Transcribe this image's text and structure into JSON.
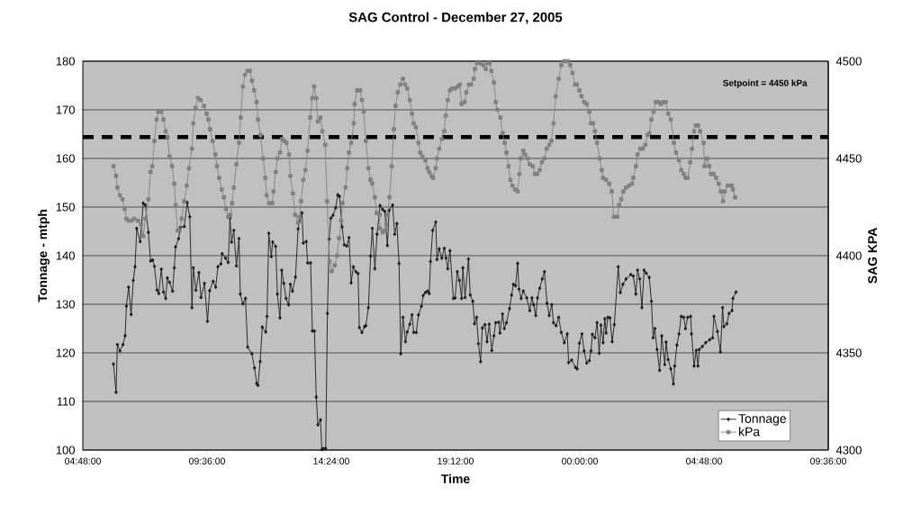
{
  "chart_data": {
    "type": "line",
    "title": "SAG Control - December 27, 2005",
    "xlabel": "Time",
    "ylabel": "Tonnage - mtph",
    "y2label": "SAG KPA",
    "xlim": [
      "2005-12-27T04:48",
      "2005-12-28T09:36"
    ],
    "xticks": [
      {
        "value": "2005-12-27T04:48",
        "label": "04:48:00"
      },
      {
        "value": "2005-12-27T09:36",
        "label": "09:36:00"
      },
      {
        "value": "2005-12-27T14:24",
        "label": "14:24:00"
      },
      {
        "value": "2005-12-27T19:12",
        "label": "19:12:00"
      },
      {
        "value": "2005-12-28T00:00",
        "label": "00:00:00"
      },
      {
        "value": "2005-12-28T04:48",
        "label": "04:48:00"
      },
      {
        "value": "2005-12-28T09:36",
        "label": "09:36:00"
      }
    ],
    "ylim": [
      100,
      180
    ],
    "yticks": [
      100,
      110,
      120,
      130,
      140,
      150,
      160,
      170,
      180
    ],
    "y2lim": [
      4300,
      4500
    ],
    "y2ticks": [
      4300,
      4350,
      4400,
      4450,
      4500
    ],
    "grid": "y",
    "legend": "bottom right",
    "line_style": "solid",
    "ref_lines": [
      {
        "axis": "y",
        "value": 164.4,
        "color": "#000000",
        "line_style": "dashed"
      }
    ],
    "annotations": [
      "Setpoint = 4450 kPa"
    ],
    "series": [
      {
        "name": "Tonnage",
        "color": "#1a1a1a",
        "marker": "diamond",
        "x": [
          "2005-12-27T05:59",
          "2005-12-27T06:05",
          "2005-12-27T06:08",
          "2005-12-27T06:14",
          "2005-12-27T06:21",
          "2005-12-27T06:26",
          "2005-12-27T06:29",
          "2005-12-27T06:34",
          "2005-12-27T06:40",
          "2005-12-27T06:45",
          "2005-12-27T06:49",
          "2005-12-27T06:53",
          "2005-12-27T07:01",
          "2005-12-27T07:08",
          "2005-12-27T07:13",
          "2005-12-27T07:20",
          "2005-12-27T07:25",
          "2005-12-27T07:30",
          "2005-12-27T07:34",
          "2005-12-27T07:40",
          "2005-12-27T07:44",
          "2005-12-27T07:50",
          "2005-12-27T07:55",
          "2005-12-27T08:00",
          "2005-12-27T08:04",
          "2005-12-27T08:09",
          "2005-12-27T08:16",
          "2005-12-27T08:20",
          "2005-12-27T08:23",
          "2005-12-27T08:30",
          "2005-12-27T08:34",
          "2005-12-27T08:43",
          "2005-12-27T08:50",
          "2005-12-27T08:56",
          "2005-12-27T09:01",
          "2005-12-27T09:04",
          "2005-12-27T09:10",
          "2005-12-27T09:17",
          "2005-12-27T09:22",
          "2005-12-27T09:30",
          "2005-12-27T09:37",
          "2005-12-27T09:42",
          "2005-12-27T09:50",
          "2005-12-27T09:56",
          "2005-12-27T10:01",
          "2005-12-27T10:08",
          "2005-12-27T10:11",
          "2005-12-27T10:19",
          "2005-12-27T10:25",
          "2005-12-27T10:29",
          "2005-12-27T10:33",
          "2005-12-27T10:38",
          "2005-12-27T10:44",
          "2005-12-27T10:50",
          "2005-12-27T10:53",
          "2005-12-27T10:59",
          "2005-12-27T11:05",
          "2005-12-27T11:10",
          "2005-12-27T11:20",
          "2005-12-27T11:26",
          "2005-12-27T11:31",
          "2005-12-27T11:34",
          "2005-12-27T11:39",
          "2005-12-27T11:44",
          "2005-12-27T11:52",
          "2005-12-27T11:55",
          "2005-12-27T11:59",
          "2005-12-27T12:05",
          "2005-12-27T12:08",
          "2005-12-27T12:15",
          "2005-12-27T12:19",
          "2005-12-27T12:25",
          "2005-12-27T12:29",
          "2005-12-27T12:34",
          "2005-12-27T12:39",
          "2005-12-27T12:45",
          "2005-12-27T12:49",
          "2005-12-27T12:54",
          "2005-12-27T13:01",
          "2005-12-27T13:07",
          "2005-12-27T13:10",
          "2005-12-27T13:16",
          "2005-12-27T13:19",
          "2005-12-27T13:26",
          "2005-12-27T13:29",
          "2005-12-27T13:36",
          "2005-12-27T13:40",
          "2005-12-27T13:45",
          "2005-12-27T13:49",
          "2005-12-27T13:53",
          "2005-12-27T13:59",
          "2005-12-27T14:02",
          "2005-12-27T14:06",
          "2005-12-27T14:11",
          "2005-12-27T14:15",
          "2005-12-27T14:19",
          "2005-12-27T14:23",
          "2005-12-27T14:28",
          "2005-12-27T14:34",
          "2005-12-27T14:39",
          "2005-12-27T14:43",
          "2005-12-27T14:49",
          "2005-12-27T14:54",
          "2005-12-27T15:00",
          "2005-12-27T15:05",
          "2005-12-27T15:10",
          "2005-12-27T15:15",
          "2005-12-27T15:21",
          "2005-12-27T15:26",
          "2005-12-27T15:29",
          "2005-12-27T15:35",
          "2005-12-27T15:41",
          "2005-12-27T15:44",
          "2005-12-27T15:50",
          "2005-12-27T15:55",
          "2005-12-27T15:59",
          "2005-12-27T16:05",
          "2005-12-27T16:10",
          "2005-12-27T16:17",
          "2005-12-27T16:23",
          "2005-12-27T16:28",
          "2005-12-27T16:34",
          "2005-12-27T16:38",
          "2005-12-27T16:46",
          "2005-12-27T16:51",
          "2005-12-27T16:56",
          "2005-12-27T17:01",
          "2005-12-27T17:05",
          "2005-12-27T17:10",
          "2005-12-27T17:16",
          "2005-12-27T17:20",
          "2005-12-27T17:26",
          "2005-12-27T17:31",
          "2005-12-27T17:35",
          "2005-12-27T17:41",
          "2005-12-27T17:46",
          "2005-12-27T17:53",
          "2005-12-27T17:57",
          "2005-12-27T18:02",
          "2005-12-27T18:07",
          "2005-12-27T18:11",
          "2005-12-27T18:14",
          "2005-12-27T18:19",
          "2005-12-27T18:26",
          "2005-12-27T18:29",
          "2005-12-27T18:34",
          "2005-12-27T18:40",
          "2005-12-27T18:46",
          "2005-12-27T18:50",
          "2005-12-27T18:54",
          "2005-12-27T18:59",
          "2005-12-27T19:07",
          "2005-12-27T19:11",
          "2005-12-27T19:16",
          "2005-12-27T19:21",
          "2005-12-27T19:26",
          "2005-12-27T19:29",
          "2005-12-27T19:34",
          "2005-12-27T19:42",
          "2005-12-27T19:46",
          "2005-12-27T19:52",
          "2005-12-27T19:56",
          "2005-12-27T20:01",
          "2005-12-27T20:05",
          "2005-12-27T20:10",
          "2005-12-27T20:14",
          "2005-12-27T20:20",
          "2005-12-27T20:25",
          "2005-12-27T20:30",
          "2005-12-27T20:36",
          "2005-12-27T20:41",
          "2005-12-27T20:45",
          "2005-12-27T20:52",
          "2005-12-27T20:55",
          "2005-12-27T21:01",
          "2005-12-27T21:05",
          "2005-12-27T21:10",
          "2005-12-27T21:17",
          "2005-12-27T21:22",
          "2005-12-27T21:26",
          "2005-12-27T21:31",
          "2005-12-27T21:36",
          "2005-12-27T21:39",
          "2005-12-27T21:44",
          "2005-12-27T21:49",
          "2005-12-27T21:57",
          "2005-12-27T22:04",
          "2005-12-27T22:09",
          "2005-12-27T22:13",
          "2005-12-27T22:18",
          "2005-12-27T22:22",
          "2005-12-27T22:27",
          "2005-12-27T22:33",
          "2005-12-27T22:38",
          "2005-12-27T22:44",
          "2005-12-27T22:49",
          "2005-12-27T22:55",
          "2005-12-27T22:59",
          "2005-12-27T23:05",
          "2005-12-27T23:11",
          "2005-12-27T23:17",
          "2005-12-27T23:24",
          "2005-12-27T23:31",
          "2005-12-27T23:34",
          "2005-12-27T23:41",
          "2005-12-27T23:50",
          "2005-12-27T23:54",
          "2005-12-27T23:59",
          "2005-12-28T00:05",
          "2005-12-28T00:10",
          "2005-12-28T00:16",
          "2005-12-28T00:22",
          "2005-12-28T00:26",
          "2005-12-28T00:29",
          "2005-12-28T00:35",
          "2005-12-28T00:40",
          "2005-12-28T00:45",
          "2005-12-28T00:49",
          "2005-12-28T00:54",
          "2005-12-28T00:58",
          "2005-12-28T01:01",
          "2005-12-28T01:05",
          "2005-12-28T01:10",
          "2005-12-28T01:15",
          "2005-12-28T01:20",
          "2005-12-28T01:29",
          "2005-12-28T01:34",
          "2005-12-28T01:40",
          "2005-12-28T01:47",
          "2005-12-28T01:58",
          "2005-12-28T02:04",
          "2005-12-28T02:10",
          "2005-12-28T02:14",
          "2005-12-28T02:19",
          "2005-12-28T02:24",
          "2005-12-28T02:29",
          "2005-12-28T02:34",
          "2005-12-28T02:41",
          "2005-12-28T02:46",
          "2005-12-28T02:50",
          "2005-12-28T02:54",
          "2005-12-28T02:59",
          "2005-12-28T03:05",
          "2005-12-28T03:10",
          "2005-12-28T03:17",
          "2005-12-28T03:20",
          "2005-12-28T03:25",
          "2005-12-28T03:31",
          "2005-12-28T03:37",
          "2005-12-28T03:40",
          "2005-12-28T03:45",
          "2005-12-28T03:50",
          "2005-12-28T03:55",
          "2005-12-28T04:01",
          "2005-12-28T04:05",
          "2005-12-28T04:10",
          "2005-12-28T04:17",
          "2005-12-28T04:19",
          "2005-12-28T04:25",
          "2005-12-28T04:30",
          "2005-12-28T04:34",
          "2005-12-28T04:37",
          "2005-12-28T04:44",
          "2005-12-28T04:52",
          "2005-12-28T05:01",
          "2005-12-28T05:08",
          "2005-12-28T05:11",
          "2005-12-28T05:19",
          "2005-12-28T05:26",
          "2005-12-28T05:31",
          "2005-12-28T05:34",
          "2005-12-28T05:41",
          "2005-12-28T05:46",
          "2005-12-28T05:53",
          "2005-12-28T05:55",
          "2005-12-28T06:02"
        ],
        "values": [
          117.7,
          111.9,
          121.7,
          120.4,
          121.7,
          123.5,
          129.6,
          133.5,
          127.9,
          134.9,
          137.7,
          145.6,
          142.9,
          150.8,
          150.4,
          144.8,
          138.9,
          139.1,
          137.8,
          132.9,
          132.2,
          137.2,
          132.5,
          131.2,
          135.4,
          134.5,
          132.7,
          137.5,
          141.8,
          143.5,
          145.8,
          146.0,
          150.9,
          148.0,
          129.3,
          137.5,
          132.9,
          136.5,
          131.4,
          134.3,
          126.5,
          132.8,
          134.7,
          133.5,
          137.7,
          138.3,
          140.4,
          139.5,
          138.6,
          147.7,
          142.8,
          145.2,
          137.9,
          143.5,
          132.1,
          130.1,
          131.2,
          121.2,
          119.8,
          116.9,
          113.7,
          113.3,
          118.2,
          125.3,
          124.3,
          127.5,
          144.6,
          139.8,
          142.8,
          141.9,
          132.1,
          127.2,
          137.0,
          134.3,
          131.2,
          129.9,
          134.1,
          132.7,
          135.6,
          145.5,
          147.0,
          148.8,
          142.6,
          142.9,
          138.5,
          138.5,
          124.5,
          124.5,
          110.9,
          105.2,
          106.2,
          100.1,
          100.3,
          100.3,
          128.1,
          143.4,
          147.7,
          148.3,
          149.8,
          152.5,
          152.2,
          145.9,
          142.2,
          142.0,
          143.7,
          134.4,
          137.7,
          136.7,
          136.3,
          125.2,
          124.2,
          125.4,
          125.6,
          129.3,
          139.9,
          145.6,
          137.3,
          144.4,
          150.3,
          149.5,
          149.1,
          142.1,
          149.3,
          150.4,
          144.4,
          146.6,
          138.4,
          119.8,
          127.3,
          122.3,
          124.3,
          125.9,
          127.8,
          124.2,
          124.2,
          127.8,
          129.6,
          131.8,
          132.4,
          132.7,
          132.2,
          138.8,
          145.2,
          146.9,
          139.2,
          141.4,
          139.5,
          141.5,
          139.5,
          137.3,
          141.0,
          131.2,
          131.3,
          136.7,
          134.9,
          131.2,
          137.5,
          131.4,
          139.3,
          131.9,
          130.6,
          126.0,
          127.3,
          121.9,
          118.2,
          125.1,
          125.8,
          122.3,
          125.9,
          120.5,
          123.5,
          126.2,
          126.3,
          124.1,
          128.0,
          125.0,
          126.2,
          129.1,
          131.9,
          134.1,
          133.8,
          138.4,
          133.1,
          131.2,
          132.7,
          131.3,
          128.7,
          131.3,
          129.9,
          127.7,
          131.3,
          133.3,
          135.2,
          136.7,
          130.2,
          127.7,
          129.9,
          126.2,
          125.6,
          127.3,
          124.2,
          122.1,
          123.9,
          118.0,
          118.5,
          117.0,
          116.7,
          122.0,
          123.9,
          120.4,
          117.9,
          118.4,
          120.4,
          123.8,
          123.1,
          126.2,
          119.9,
          125.7,
          122.1,
          127.0,
          124.1,
          127.3,
          127.2,
          122.3,
          125.8,
          137.7,
          132.4,
          134.1,
          135.2,
          136.1,
          135.8,
          132.1,
          137.0,
          135.2,
          129.3,
          137.0,
          136.4,
          135.5,
          130.6,
          123.1,
          125.0,
          120.7,
          116.4,
          123.5,
          117.6,
          122.2,
          118.6,
          116.7,
          113.6,
          117.3,
          121.6,
          123.9,
          127.5,
          127.3,
          125.0,
          127.3,
          127.5,
          123.9,
          117.3,
          120.5,
          117.3,
          120.7,
          121.3,
          122.1,
          122.7,
          123.1,
          127.5,
          124.4,
          120.2,
          129.3,
          125.4,
          126.0,
          128.1,
          128.7,
          131.2,
          132.5
        ]
      },
      {
        "name": "kPa",
        "color": "#808080",
        "marker": "square",
        "axis": "y2",
        "x": [
          "2005-12-27T05:59",
          "2005-12-27T06:05",
          "2005-12-27T06:08",
          "2005-12-27T06:14",
          "2005-12-27T06:20",
          "2005-12-27T06:25",
          "2005-12-27T06:29",
          "2005-12-27T06:34",
          "2005-12-27T06:41",
          "2005-12-27T06:47",
          "2005-12-27T06:56",
          "2005-12-27T07:03",
          "2005-12-27T07:08",
          "2005-12-27T07:13",
          "2005-12-27T07:20",
          "2005-12-27T07:25",
          "2005-12-27T07:29",
          "2005-12-27T07:34",
          "2005-12-27T07:39",
          "2005-12-27T07:43",
          "2005-12-27T07:50",
          "2005-12-27T07:55",
          "2005-12-27T08:00",
          "2005-12-27T08:04",
          "2005-12-27T08:09",
          "2005-12-27T08:15",
          "2005-12-27T08:20",
          "2005-12-27T08:23",
          "2005-12-27T08:28",
          "2005-12-27T08:32",
          "2005-12-27T08:37",
          "2005-12-27T08:43",
          "2005-12-27T08:49",
          "2005-12-27T08:54",
          "2005-12-27T09:01",
          "2005-12-27T09:04",
          "2005-12-27T09:09",
          "2005-12-27T09:15",
          "2005-12-27T09:21",
          "2005-12-27T09:29",
          "2005-12-27T09:35",
          "2005-12-27T09:39",
          "2005-12-27T09:43",
          "2005-12-27T09:49",
          "2005-12-27T09:55",
          "2005-12-27T09:59",
          "2005-12-27T10:04",
          "2005-12-27T10:10",
          "2005-12-27T10:15",
          "2005-12-27T10:20",
          "2005-12-27T10:25",
          "2005-12-27T10:30",
          "2005-12-27T10:34",
          "2005-12-27T10:38",
          "2005-12-27T10:44",
          "2005-12-27T10:50",
          "2005-12-27T10:54",
          "2005-12-27T10:59",
          "2005-12-27T11:04",
          "2005-12-27T11:10",
          "2005-12-27T11:15",
          "2005-12-27T11:20",
          "2005-12-27T11:25",
          "2005-12-27T11:31",
          "2005-12-27T11:34",
          "2005-12-27T11:40",
          "2005-12-27T11:46",
          "2005-12-27T11:51",
          "2005-12-27T11:54",
          "2005-12-27T12:00",
          "2005-12-27T12:07",
          "2005-12-27T12:10",
          "2005-12-27T12:15",
          "2005-12-27T12:19",
          "2005-12-27T12:25",
          "2005-12-27T12:30",
          "2005-12-27T12:35",
          "2005-12-27T12:40",
          "2005-12-27T12:46",
          "2005-12-27T12:49",
          "2005-12-27T12:55",
          "2005-12-27T13:00",
          "2005-12-27T13:07",
          "2005-12-27T13:10",
          "2005-12-27T13:14",
          "2005-12-27T13:19",
          "2005-12-27T13:24",
          "2005-12-27T13:29",
          "2005-12-27T13:35",
          "2005-12-27T13:40",
          "2005-12-27T13:44",
          "2005-12-27T13:49",
          "2005-12-27T13:53",
          "2005-12-27T13:59",
          "2005-12-27T14:03",
          "2005-12-27T14:10",
          "2005-12-27T14:14",
          "2005-12-27T14:20",
          "2005-12-27T14:25",
          "2005-12-27T14:32",
          "2005-12-27T14:37",
          "2005-12-27T14:42",
          "2005-12-27T14:47",
          "2005-12-27T14:50",
          "2005-12-27T14:57",
          "2005-12-27T15:01",
          "2005-12-27T15:05",
          "2005-12-27T15:10",
          "2005-12-27T15:16",
          "2005-12-27T15:18",
          "2005-12-27T15:24",
          "2005-12-27T15:31",
          "2005-12-27T15:35",
          "2005-12-27T15:39",
          "2005-12-27T15:44",
          "2005-12-27T15:50",
          "2005-12-27T15:55",
          "2005-12-27T15:59",
          "2005-12-27T16:05",
          "2005-12-27T16:09",
          "2005-12-27T16:16",
          "2005-12-27T16:17",
          "2005-12-27T16:23",
          "2005-12-27T16:28",
          "2005-12-27T16:31",
          "2005-12-27T16:34",
          "2005-12-27T16:39",
          "2005-12-27T16:44",
          "2005-12-27T16:49",
          "2005-12-27T16:53",
          "2005-12-27T16:58",
          "2005-12-27T17:04",
          "2005-12-27T17:10",
          "2005-12-27T17:15",
          "2005-12-27T17:20",
          "2005-12-27T17:26",
          "2005-12-27T17:31",
          "2005-12-27T17:35",
          "2005-12-27T17:40",
          "2005-12-27T17:46",
          "2005-12-27T17:50",
          "2005-12-27T17:55",
          "2005-12-27T18:02",
          "2005-12-27T18:07",
          "2005-12-27T18:11",
          "2005-12-27T18:16",
          "2005-12-27T18:20",
          "2005-12-27T18:26",
          "2005-12-27T18:29",
          "2005-12-27T18:34",
          "2005-12-27T18:40",
          "2005-12-27T18:46",
          "2005-12-27T18:49",
          "2005-12-27T18:54",
          "2005-12-27T18:59",
          "2005-12-27T19:04",
          "2005-12-27T19:11",
          "2005-12-27T19:17",
          "2005-12-27T19:22",
          "2005-12-27T19:26",
          "2005-12-27T19:33",
          "2005-12-27T19:37",
          "2005-12-27T19:43",
          "2005-12-27T19:48",
          "2005-12-27T19:54",
          "2005-12-27T19:57",
          "2005-12-27T20:02",
          "2005-12-27T20:09",
          "2005-12-27T20:16",
          "2005-12-27T20:22",
          "2005-12-27T20:26",
          "2005-12-27T20:31",
          "2005-12-27T20:35",
          "2005-12-27T20:41",
          "2005-12-27T20:45",
          "2005-12-27T20:49",
          "2005-12-27T20:56",
          "2005-12-27T21:01",
          "2005-12-27T21:06",
          "2005-12-27T21:10",
          "2005-12-27T21:15",
          "2005-12-27T21:19",
          "2005-12-27T21:24",
          "2005-12-27T21:30",
          "2005-12-27T21:36",
          "2005-12-27T21:40",
          "2005-12-27T21:43",
          "2005-12-27T21:49",
          "2005-12-27T21:53",
          "2005-12-27T21:59",
          "2005-12-27T22:04",
          "2005-12-27T22:11",
          "2005-12-27T22:16",
          "2005-12-27T22:21",
          "2005-12-27T22:27",
          "2005-12-27T22:32",
          "2005-12-27T22:38",
          "2005-12-27T22:43",
          "2005-12-27T22:49",
          "2005-12-27T22:54",
          "2005-12-27T22:59",
          "2005-12-27T23:04",
          "2005-12-27T23:11",
          "2005-12-27T23:17",
          "2005-12-27T23:24",
          "2005-12-27T23:32",
          "2005-12-27T23:38",
          "2005-12-27T23:43",
          "2005-12-27T23:49",
          "2005-12-27T23:53",
          "2005-12-27T23:59",
          "2005-12-28T00:04",
          "2005-12-28T00:10",
          "2005-12-28T00:16",
          "2005-12-28T00:22",
          "2005-12-28T00:26",
          "2005-12-28T00:31",
          "2005-12-28T00:35",
          "2005-12-28T00:40",
          "2005-12-28T00:46",
          "2005-12-28T00:51",
          "2005-12-28T00:54",
          "2005-12-28T01:01",
          "2005-12-28T01:08",
          "2005-12-28T01:14",
          "2005-12-28T01:19",
          "2005-12-28T01:27",
          "2005-12-28T01:31",
          "2005-12-28T01:36",
          "2005-12-28T01:41",
          "2005-12-28T01:47",
          "2005-12-28T01:54",
          "2005-12-28T02:01",
          "2005-12-28T02:04",
          "2005-12-28T02:10",
          "2005-12-28T02:14",
          "2005-12-28T02:20",
          "2005-12-28T02:26",
          "2005-12-28T02:32",
          "2005-12-28T02:37",
          "2005-12-28T02:41",
          "2005-12-28T02:46",
          "2005-12-28T02:51",
          "2005-12-28T02:56",
          "2005-12-28T03:02",
          "2005-12-28T03:08",
          "2005-12-28T03:13",
          "2005-12-28T03:19",
          "2005-12-28T03:25",
          "2005-12-28T03:31",
          "2005-12-28T03:38",
          "2005-12-28T03:43",
          "2005-12-28T03:50",
          "2005-12-28T03:55",
          "2005-12-28T04:01",
          "2005-12-28T04:05",
          "2005-12-28T04:10",
          "2005-12-28T04:16",
          "2005-12-28T04:20",
          "2005-12-28T04:25",
          "2005-12-28T04:29",
          "2005-12-28T04:34",
          "2005-12-28T04:39",
          "2005-12-28T04:47",
          "2005-12-28T04:49",
          "2005-12-28T04:55",
          "2005-12-28T05:00",
          "2005-12-28T05:04",
          "2005-12-28T05:10",
          "2005-12-28T05:16",
          "2005-12-28T05:22",
          "2005-12-28T05:27",
          "2005-12-28T05:32",
          "2005-12-28T05:36",
          "2005-12-28T05:43",
          "2005-12-28T05:52",
          "2005-12-28T05:55",
          "2005-12-28T06:00"
        ],
        "values": [
          4446,
          4441,
          4435,
          4431,
          4429,
          4424,
          4419,
          4418,
          4418,
          4419,
          4418,
          4416,
          4410,
          4419,
          4429,
          4443,
          4446,
          4459,
          4470,
          4474,
          4474,
          4470,
          4464,
          4461,
          4451,
          4446,
          4437,
          4426,
          4413,
          4413,
          4419,
          4428,
          4436,
          4445,
          4455,
          4468,
          4476,
          4481,
          4480,
          4477,
          4473,
          4470,
          4465,
          4459,
          4452,
          4446,
          4440,
          4434,
          4430,
          4424,
          4420,
          4421,
          4427,
          4435,
          4447,
          4458,
          4471,
          4487,
          4493,
          4495,
          4495,
          4490,
          4485,
          4479,
          4470,
          4462,
          4450,
          4440,
          4431,
          4427,
          4427,
          4433,
          4443,
          4450,
          4453,
          4460,
          4459,
          4458,
          4452,
          4441,
          4432,
          4421,
          4417,
          4420,
          4428,
          4439,
          4444,
          4454,
          4471,
          4481,
          4487,
          4481,
          4469,
          4471,
          4464,
          4457,
          4428,
          4397,
          4392,
          4395,
          4400,
          4409,
          4418,
          4427,
          4435,
          4445,
          4453,
          4458,
          4468,
          4478,
          4485,
          4485,
          4480,
          4474,
          4459,
          4445,
          4439,
          4437,
          4430,
          4422,
          4421,
          4414,
          4412,
          4413,
          4416,
          4421,
          4430,
          4446,
          4465,
          4477,
          4484,
          4488,
          4491,
          4488,
          4486,
          4480,
          4473,
          4468,
          4466,
          4458,
          4453,
          4451,
          4449,
          4445,
          4443,
          4441,
          4440,
          4445,
          4450,
          4455,
          4460,
          4464,
          4472,
          4480,
          4485,
          4486,
          4486,
          4487,
          4488,
          4478,
          4479,
          4484,
          4488,
          4488,
          4491,
          4496,
          4499,
          4499,
          4498,
          4496,
          4499,
          4499,
          4495,
          4489,
          4479,
          4475,
          4471,
          4463,
          4458,
          4453,
          4446,
          4439,
          4436,
          4434,
          4433,
          4442,
          4450,
          4454,
          4452,
          4450,
          4447,
          4446,
          4442,
          4442,
          4444,
          4448,
          4450,
          4455,
          4457,
          4459,
          4468,
          4482,
          4491,
          4498,
          4500,
          4500,
          4498,
          4494,
          4488,
          4488,
          4485,
          4482,
          4479,
          4478,
          4474,
          4468,
          4468,
          4464,
          4458,
          4450,
          4444,
          4440,
          4439,
          4437,
          4433,
          4420,
          4420,
          4426,
          4429,
          4433,
          4435,
          4436,
          4437,
          4440,
          4446,
          4452,
          4455,
          4455,
          4457,
          4462,
          4463,
          4470,
          4474,
          4479,
          4479,
          4478,
          4479,
          4479,
          4473,
          4470,
          4458,
          4453,
          4449,
          4444,
          4442,
          4440,
          4440,
          4448,
          4455,
          4464,
          4467,
          4467,
          4464,
          4458,
          4446,
          4450,
          4446,
          4442,
          4442,
          4440,
          4437,
          4433,
          4428,
          4433,
          4436,
          4436,
          4434,
          4430
        ]
      }
    ]
  }
}
